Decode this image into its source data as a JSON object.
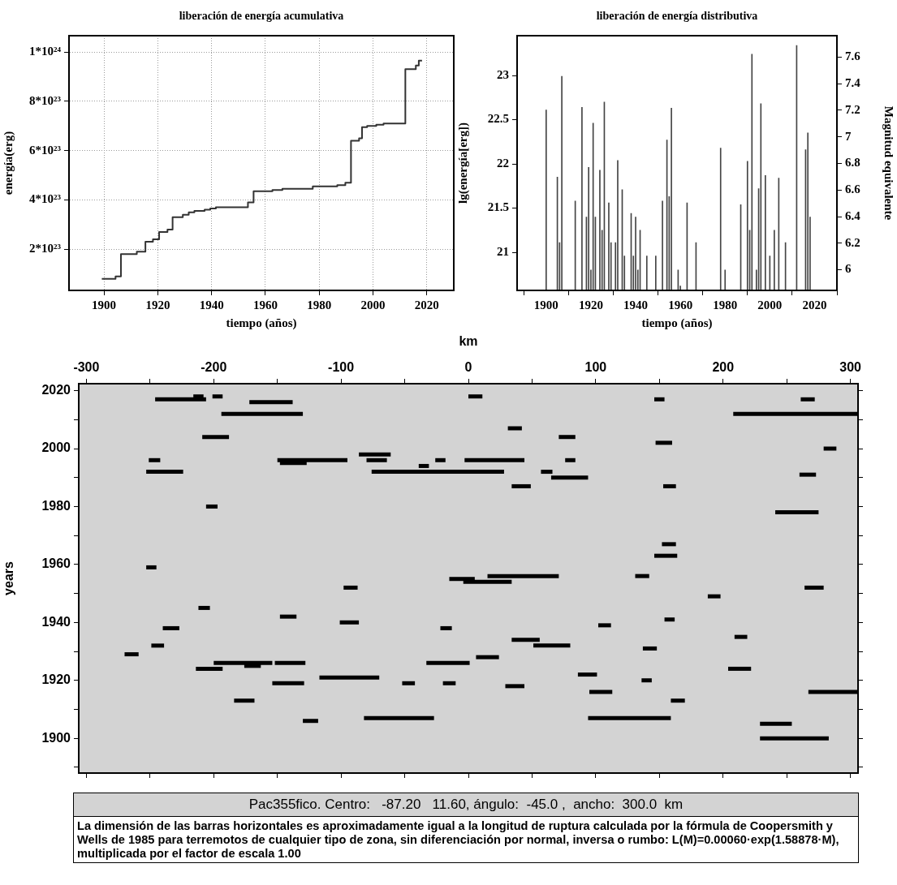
{
  "chart_data": [
    {
      "type": "step",
      "title": "liberación de energía acumulativa",
      "xlabel": "tiempo (años)",
      "ylabel": "energía(erg)",
      "xlim": [
        1887,
        2030
      ],
      "ylim": [
        3.3e+22,
        1.066e+24
      ],
      "xticks": [
        1900,
        1920,
        1940,
        1960,
        1980,
        2000,
        2020
      ],
      "yticks": [
        {
          "value": 2e+23,
          "label": "2*10²³"
        },
        {
          "value": 4e+23,
          "label": "4*10²³"
        },
        {
          "value": 6e+23,
          "label": "6*10²³"
        },
        {
          "value": 8e+23,
          "label": "8*10²³"
        },
        {
          "value": 1e+24,
          "label": "1*10²⁴"
        }
      ],
      "grid": true,
      "series": [
        {
          "color": "#333333",
          "x": [
            1899.2,
            1904.3,
            1906.3,
            1912.2,
            1915.4,
            1918.2,
            1920.5,
            1923.6,
            1925.5,
            1929.3,
            1931.5,
            1933.6,
            1937.4,
            1939.5,
            1941.6,
            1951.3,
            1953.5,
            1955.6,
            1962.6,
            1966.3,
            1977.6,
            1986.7,
            1989.7,
            1991.8,
            1994.8,
            1995.9,
            1997.8,
            2001.2,
            2003.9,
            2012.0,
            2015.9,
            2017.0,
            2018.2
          ],
          "values": [
            8e+22,
            9e+22,
            1.8e+23,
            1.9e+23,
            2.3e+23,
            2.4e+23,
            2.7e+23,
            2.8e+23,
            3.3e+23,
            3.4e+23,
            3.5e+23,
            3.55e+23,
            3.6e+23,
            3.65e+23,
            3.7e+23,
            3.7e+23,
            3.9e+23,
            4.35e+23,
            4.4e+23,
            4.45e+23,
            4.55e+23,
            4.6e+23,
            4.7e+23,
            6.4e+23,
            6.5e+23,
            6.95e+23,
            7e+23,
            7.05e+23,
            7.1e+23,
            9.3e+23,
            9.45e+23,
            9.65e+23,
            9.65e+23
          ]
        }
      ]
    },
    {
      "type": "bar",
      "title": "liberación de energía distributiva",
      "xlabel": "tiempo (años)",
      "ylabel": "lg(energía[erg])",
      "y2label": "Magnitud equivalente",
      "xlim": [
        1887,
        2030
      ],
      "ylim": [
        20.57,
        23.45
      ],
      "y2lim": [
        5.845,
        7.761
      ],
      "xticks": [
        1900,
        1920,
        1940,
        1960,
        1980,
        2000,
        2020
      ],
      "yticks": [
        21,
        21.5,
        22,
        22.5,
        23
      ],
      "y2ticks": [
        6,
        6.2,
        6.4,
        6.6,
        6.8,
        7,
        7.2,
        7.4,
        7.6
      ],
      "series": [
        {
          "color": "#444444",
          "x": [
            1900,
            1905,
            1906,
            1907,
            1913,
            1916,
            1918,
            1919,
            1920,
            1921,
            1922,
            1924,
            1925,
            1926,
            1928,
            1929,
            1931,
            1932,
            1934,
            1935,
            1938,
            1939,
            1940,
            1941,
            1942,
            1945,
            1949,
            1952,
            1954,
            1955,
            1956,
            1959,
            1960,
            1963,
            1967,
            1978,
            1980,
            1987,
            1990,
            1991,
            1992,
            1994,
            1995,
            1996,
            1998,
            2000,
            2002,
            2004,
            2007,
            2012,
            2016,
            2017,
            2018
          ],
          "values": [
            22.61,
            21.85,
            21.11,
            22.99,
            21.58,
            22.64,
            21.4,
            21.96,
            20.8,
            22.46,
            21.4,
            21.93,
            21.25,
            22.7,
            21.56,
            21.11,
            21.11,
            22.04,
            21.71,
            20.96,
            21.44,
            20.96,
            21.4,
            20.8,
            21.25,
            20.96,
            20.96,
            21.58,
            22.27,
            21.63,
            22.63,
            20.8,
            20.62,
            21.56,
            21.11,
            22.18,
            20.8,
            21.54,
            22.03,
            21.25,
            23.24,
            20.8,
            21.72,
            22.68,
            21.87,
            20.96,
            21.25,
            21.84,
            21.11,
            23.34,
            22.16,
            22.35,
            21.4
          ]
        }
      ]
    },
    {
      "type": "line",
      "color": "#000000",
      "xlabel": "km",
      "ylabel": "years",
      "xlim": [
        -306,
        306
      ],
      "ylim": [
        1888,
        2022.4
      ],
      "xticks": [
        -300,
        {
          "value": -250,
          "label": null
        },
        -200,
        {
          "value": -150,
          "label": null
        },
        -100,
        {
          "value": -50,
          "label": null
        },
        0,
        {
          "value": 50,
          "label": null
        },
        100,
        {
          "value": 150,
          "label": null
        },
        200,
        {
          "value": 250,
          "label": null
        },
        300
      ],
      "yticks": [
        {
          "value": 1890,
          "label": null
        },
        1900,
        {
          "value": 1910,
          "label": null
        },
        1920,
        {
          "value": 1930,
          "label": null
        },
        1940,
        {
          "value": 1950,
          "label": null
        },
        1960,
        {
          "value": 1970,
          "label": null
        },
        1980,
        {
          "value": 1990,
          "label": null
        },
        2000,
        {
          "value": 2010,
          "label": null
        },
        2020
      ],
      "series": [
        {
          "x": [
            0,
            11
          ],
          "values": [
            2018,
            2018
          ]
        },
        {
          "x": [
            -201,
            -193
          ],
          "values": [
            2018,
            2018
          ]
        },
        {
          "x": [
            -216,
            -208
          ],
          "values": [
            2018,
            2018
          ]
        },
        {
          "x": [
            261,
            272
          ],
          "values": [
            2017,
            2017
          ]
        },
        {
          "x": [
            146,
            154
          ],
          "values": [
            2017,
            2017
          ]
        },
        {
          "x": [
            -246,
            -206
          ],
          "values": [
            2017,
            2017
          ]
        },
        {
          "x": [
            -172,
            -138
          ],
          "values": [
            2016,
            2016
          ]
        },
        {
          "x": [
            208,
            306
          ],
          "values": [
            2012,
            2012
          ]
        },
        {
          "x": [
            -194,
            -130
          ],
          "values": [
            2012,
            2012
          ]
        },
        {
          "x": [
            31,
            42
          ],
          "values": [
            2007,
            2007
          ]
        },
        {
          "x": [
            71,
            84
          ],
          "values": [
            2004,
            2004
          ]
        },
        {
          "x": [
            -209,
            -188
          ],
          "values": [
            2004,
            2004
          ]
        },
        {
          "x": [
            147,
            160
          ],
          "values": [
            2002,
            2002
          ]
        },
        {
          "x": [
            279,
            289
          ],
          "values": [
            2000,
            2000
          ]
        },
        {
          "x": [
            -86,
            -61
          ],
          "values": [
            1998,
            1998
          ]
        },
        {
          "x": [
            76,
            84
          ],
          "values": [
            1996,
            1996
          ]
        },
        {
          "x": [
            -3,
            44
          ],
          "values": [
            1996,
            1996
          ]
        },
        {
          "x": [
            -26,
            -18
          ],
          "values": [
            1996,
            1996
          ]
        },
        {
          "x": [
            -80,
            -64
          ],
          "values": [
            1996,
            1996
          ]
        },
        {
          "x": [
            -150,
            -95
          ],
          "values": [
            1996,
            1996
          ]
        },
        {
          "x": [
            -251,
            -242
          ],
          "values": [
            1996,
            1996
          ]
        },
        {
          "x": [
            -148,
            -127
          ],
          "values": [
            1995,
            1995
          ]
        },
        {
          "x": [
            -39,
            -31
          ],
          "values": [
            1994,
            1994
          ]
        },
        {
          "x": [
            57,
            66
          ],
          "values": [
            1992,
            1992
          ]
        },
        {
          "x": [
            -76,
            28
          ],
          "values": [
            1992,
            1992
          ]
        },
        {
          "x": [
            -253,
            -224
          ],
          "values": [
            1992,
            1992
          ]
        },
        {
          "x": [
            260,
            273
          ],
          "values": [
            1991,
            1991
          ]
        },
        {
          "x": [
            65,
            94
          ],
          "values": [
            1990,
            1990
          ]
        },
        {
          "x": [
            153,
            163
          ],
          "values": [
            1987,
            1987
          ]
        },
        {
          "x": [
            34,
            49
          ],
          "values": [
            1987,
            1987
          ]
        },
        {
          "x": [
            -206,
            -197
          ],
          "values": [
            1980,
            1980
          ]
        },
        {
          "x": [
            241,
            275
          ],
          "values": [
            1978,
            1978
          ]
        },
        {
          "x": [
            152,
            163
          ],
          "values": [
            1967,
            1967
          ]
        },
        {
          "x": [
            146,
            164
          ],
          "values": [
            1963,
            1963
          ]
        },
        {
          "x": [
            -253,
            -245
          ],
          "values": [
            1959,
            1959
          ]
        },
        {
          "x": [
            131,
            142
          ],
          "values": [
            1956,
            1956
          ]
        },
        {
          "x": [
            15,
            71
          ],
          "values": [
            1956,
            1956
          ]
        },
        {
          "x": [
            -15,
            5
          ],
          "values": [
            1955,
            1955
          ]
        },
        {
          "x": [
            -4,
            34
          ],
          "values": [
            1954,
            1954
          ]
        },
        {
          "x": [
            264,
            279
          ],
          "values": [
            1952,
            1952
          ]
        },
        {
          "x": [
            -98,
            -87
          ],
          "values": [
            1952,
            1952
          ]
        },
        {
          "x": [
            188,
            198
          ],
          "values": [
            1949,
            1949
          ]
        },
        {
          "x": [
            -212,
            -203
          ],
          "values": [
            1945,
            1945
          ]
        },
        {
          "x": [
            -148,
            -135
          ],
          "values": [
            1942,
            1942
          ]
        },
        {
          "x": [
            154,
            162
          ],
          "values": [
            1941,
            1941
          ]
        },
        {
          "x": [
            -101,
            -86
          ],
          "values": [
            1940,
            1940
          ]
        },
        {
          "x": [
            102,
            112
          ],
          "values": [
            1939,
            1939
          ]
        },
        {
          "x": [
            -22,
            -13
          ],
          "values": [
            1938,
            1938
          ]
        },
        {
          "x": [
            -240,
            -227
          ],
          "values": [
            1938,
            1938
          ]
        },
        {
          "x": [
            209,
            219
          ],
          "values": [
            1935,
            1935
          ]
        },
        {
          "x": [
            34,
            56
          ],
          "values": [
            1934,
            1934
          ]
        },
        {
          "x": [
            51,
            80
          ],
          "values": [
            1932,
            1932
          ]
        },
        {
          "x": [
            -249,
            -239
          ],
          "values": [
            1932,
            1932
          ]
        },
        {
          "x": [
            137,
            148
          ],
          "values": [
            1931,
            1931
          ]
        },
        {
          "x": [
            -270,
            -259
          ],
          "values": [
            1929,
            1929
          ]
        },
        {
          "x": [
            6,
            24
          ],
          "values": [
            1928,
            1928
          ]
        },
        {
          "x": [
            -33,
            1
          ],
          "values": [
            1926,
            1926
          ]
        },
        {
          "x": [
            -152,
            -128
          ],
          "values": [
            1926,
            1926
          ]
        },
        {
          "x": [
            -200,
            -154
          ],
          "values": [
            1926,
            1926
          ]
        },
        {
          "x": [
            -176,
            -163
          ],
          "values": [
            1925,
            1925
          ]
        },
        {
          "x": [
            204,
            222
          ],
          "values": [
            1924,
            1924
          ]
        },
        {
          "x": [
            -214,
            -193
          ],
          "values": [
            1924,
            1924
          ]
        },
        {
          "x": [
            86,
            101
          ],
          "values": [
            1922,
            1922
          ]
        },
        {
          "x": [
            -117,
            -70
          ],
          "values": [
            1921,
            1921
          ]
        },
        {
          "x": [
            136,
            144
          ],
          "values": [
            1920,
            1920
          ]
        },
        {
          "x": [
            -20,
            -10
          ],
          "values": [
            1919,
            1919
          ]
        },
        {
          "x": [
            -52,
            -42
          ],
          "values": [
            1919,
            1919
          ]
        },
        {
          "x": [
            -154,
            -129
          ],
          "values": [
            1919,
            1919
          ]
        },
        {
          "x": [
            29,
            44
          ],
          "values": [
            1918,
            1918
          ]
        },
        {
          "x": [
            267,
            306
          ],
          "values": [
            1916,
            1916
          ]
        },
        {
          "x": [
            95,
            113
          ],
          "values": [
            1916,
            1916
          ]
        },
        {
          "x": [
            159,
            170
          ],
          "values": [
            1913,
            1913
          ]
        },
        {
          "x": [
            -184,
            -168
          ],
          "values": [
            1913,
            1913
          ]
        },
        {
          "x": [
            94,
            159
          ],
          "values": [
            1907,
            1907
          ]
        },
        {
          "x": [
            -82,
            -27
          ],
          "values": [
            1907,
            1907
          ]
        },
        {
          "x": [
            -130,
            -118
          ],
          "values": [
            1906,
            1906
          ]
        },
        {
          "x": [
            229,
            254
          ],
          "values": [
            1905,
            1905
          ]
        },
        {
          "x": [
            229,
            283
          ],
          "values": [
            1900,
            1900
          ]
        }
      ]
    },
    {
      "type": "other",
      "title": "Pac355fico. Centro:   -87.20   11.60, ángulo:  -45.0 ,  ancho:  300.0  km",
      "annotations": [
        "La dimensión de las barras horizontales es aproximadamente igual a la longitud de ruptura calculada por la fórmula de Coopersmith y Wells de 1985 para terremotos de cualquier tipo de zona, sin diferenciación por normal, inversa o rumbo: L(M)=0.00060·exp(1.58878·M), multiplicada por el factor de escala 1.00"
      ]
    }
  ]
}
